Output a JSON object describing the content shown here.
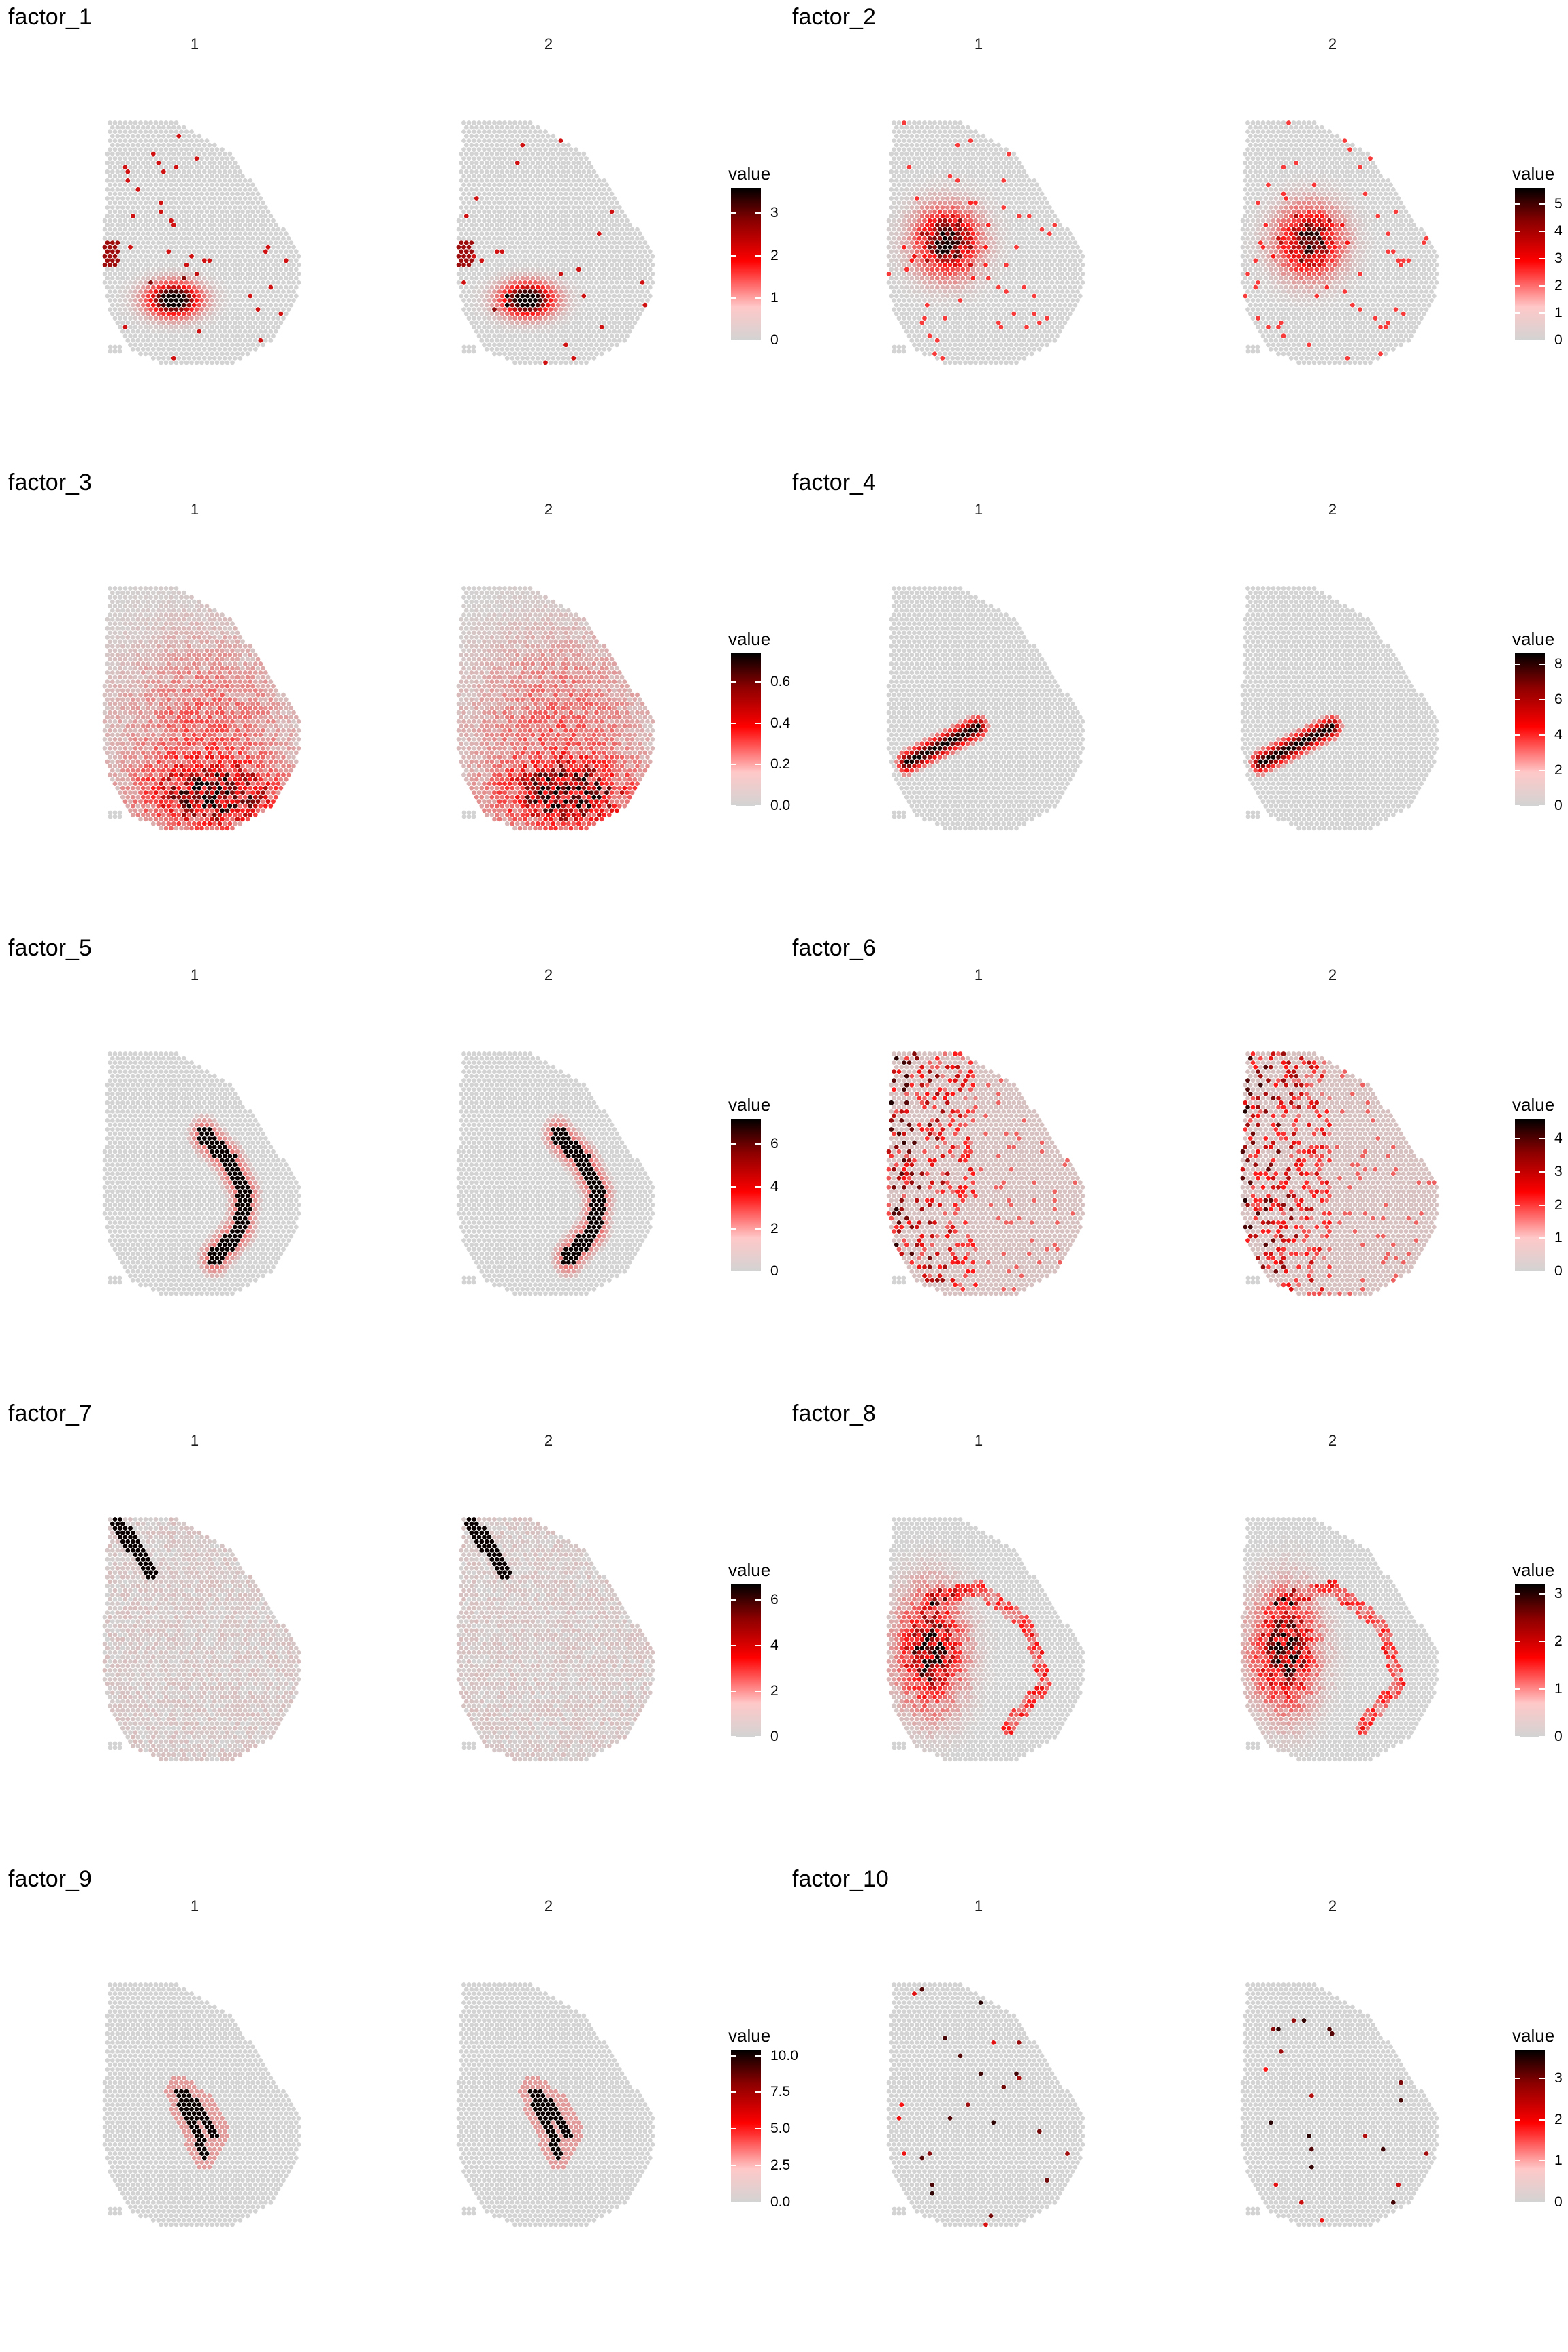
{
  "chart_data": [
    {
      "type": "heatmap",
      "title": "factor_1",
      "samples": [
        "1",
        "2"
      ],
      "legend_title": "value",
      "ticks": [
        "0",
        "1",
        "2",
        "3"
      ],
      "max": 3.6,
      "colors": {
        "low": "#d3d3d3",
        "mid": "#ff0000",
        "high": "#000000"
      },
      "pattern": "hotspot-lower-left"
    },
    {
      "type": "heatmap",
      "title": "factor_2",
      "samples": [
        "1",
        "2"
      ],
      "legend_title": "value",
      "ticks": [
        "0",
        "1",
        "2",
        "3",
        "4",
        "5"
      ],
      "max": 5.6,
      "colors": {
        "low": "#d3d3d3",
        "mid": "#ff0000",
        "high": "#000000"
      },
      "pattern": "hotspot-mid-left"
    },
    {
      "type": "heatmap",
      "title": "factor_3",
      "samples": [
        "1",
        "2"
      ],
      "legend_title": "value",
      "ticks": [
        "0.0",
        "0.2",
        "0.4",
        "0.6"
      ],
      "max": 0.74,
      "colors": {
        "low": "#d3d3d3",
        "mid": "#ff0000",
        "high": "#000000"
      },
      "pattern": "diffuse-bottom"
    },
    {
      "type": "heatmap",
      "title": "factor_4",
      "samples": [
        "1",
        "2"
      ],
      "legend_title": "value",
      "ticks": [
        "0",
        "2",
        "4",
        "6",
        "8"
      ],
      "max": 8.6,
      "colors": {
        "low": "#d3d3d3",
        "mid": "#ff0000",
        "high": "#000000"
      },
      "pattern": "wedge-lower-left"
    },
    {
      "type": "heatmap",
      "title": "factor_5",
      "samples": [
        "1",
        "2"
      ],
      "legend_title": "value",
      "ticks": [
        "0",
        "2",
        "4",
        "6"
      ],
      "max": 7.2,
      "colors": {
        "low": "#d3d3d3",
        "mid": "#ff0000",
        "high": "#000000"
      },
      "pattern": "arc-band"
    },
    {
      "type": "heatmap",
      "title": "factor_6",
      "samples": [
        "1",
        "2"
      ],
      "legend_title": "value",
      "ticks": [
        "0",
        "1",
        "2",
        "3",
        "4"
      ],
      "max": 4.6,
      "colors": {
        "low": "#d3d3d3",
        "mid": "#ff0000",
        "high": "#000000"
      },
      "pattern": "scattered-left"
    },
    {
      "type": "heatmap",
      "title": "factor_7",
      "samples": [
        "1",
        "2"
      ],
      "legend_title": "value",
      "ticks": [
        "0",
        "2",
        "4",
        "6"
      ],
      "max": 6.7,
      "colors": {
        "low": "#d3d3d3",
        "mid": "#ff0000",
        "high": "#000000"
      },
      "pattern": "top-left-streak"
    },
    {
      "type": "heatmap",
      "title": "factor_8",
      "samples": [
        "1",
        "2"
      ],
      "legend_title": "value",
      "ticks": [
        "0",
        "1",
        "2",
        "3"
      ],
      "max": 3.2,
      "colors": {
        "low": "#d3d3d3",
        "mid": "#ff0000",
        "high": "#000000"
      },
      "pattern": "left-cluster-arc"
    },
    {
      "type": "heatmap",
      "title": "factor_9",
      "samples": [
        "1",
        "2"
      ],
      "legend_title": "value",
      "ticks": [
        "0.0",
        "2.5",
        "5.0",
        "7.5",
        "10.0"
      ],
      "max": 10.4,
      "colors": {
        "low": "#d3d3d3",
        "mid": "#ff0000",
        "high": "#000000"
      },
      "pattern": "double-curve"
    },
    {
      "type": "heatmap",
      "title": "factor_10",
      "samples": [
        "1",
        "2"
      ],
      "legend_title": "value",
      "ticks": [
        "0",
        "1",
        "2",
        "3"
      ],
      "max": 3.7,
      "colors": {
        "low": "#d3d3d3",
        "mid": "#ff0000",
        "high": "#000000"
      },
      "pattern": "sparse-spots"
    }
  ]
}
